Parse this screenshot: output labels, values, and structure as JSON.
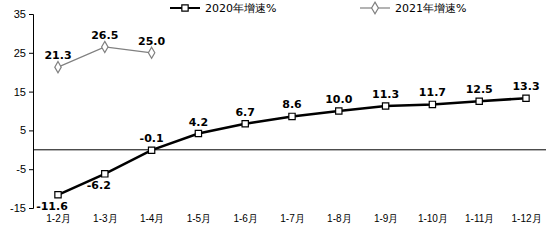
{
  "chart_data": {
    "type": "line",
    "categories": [
      "1-2月",
      "1-3月",
      "1-4月",
      "1-5月",
      "1-6月",
      "1-7月",
      "1-8月",
      "1-9月",
      "1-10月",
      "1-11月",
      "1-12月"
    ],
    "series": [
      {
        "name": "2020年增速%",
        "color": "#000000",
        "marker": "square",
        "line_style": "solid",
        "values": [
          -11.6,
          -6.2,
          -0.1,
          4.2,
          6.7,
          8.6,
          10.0,
          11.3,
          11.7,
          12.5,
          13.3
        ],
        "value_labels": [
          "-11.6",
          "-6.2",
          "-0.1",
          "4.2",
          "6.7",
          "8.6",
          "10.0",
          "11.3",
          "11.7",
          "12.5",
          "13.3"
        ]
      },
      {
        "name": "2021年增速%",
        "color": "#808080",
        "marker": "diamond",
        "line_style": "solid",
        "values": [
          21.3,
          26.5,
          25.0,
          null,
          null,
          null,
          null,
          null,
          null,
          null,
          null
        ],
        "value_labels": [
          "21.3",
          "26.5",
          "25.0",
          null,
          null,
          null,
          null,
          null,
          null,
          null,
          null
        ]
      }
    ],
    "ylim": [
      -15,
      35
    ],
    "yticks": [
      -15,
      -5,
      5,
      15,
      25,
      35
    ],
    "grid": false,
    "legend": "top",
    "data_labels": true
  }
}
